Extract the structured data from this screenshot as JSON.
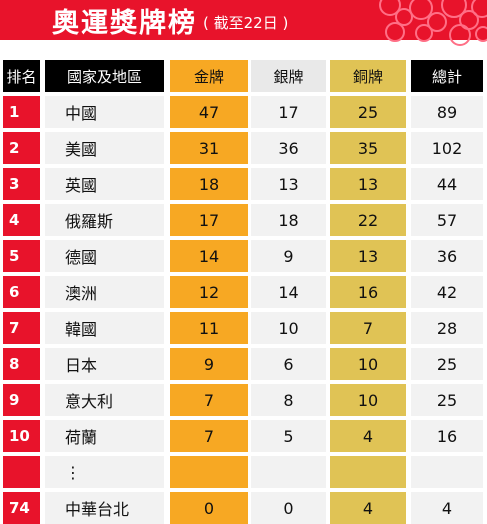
{
  "banner": {
    "title": "奧運獎牌榜",
    "subtitle": "( 截至22日 )"
  },
  "headers": {
    "rank": "排名",
    "country": "國家及地區",
    "gold": "金牌",
    "silver": "銀牌",
    "bronze": "銅牌",
    "total": "總計"
  },
  "rows": [
    {
      "rank": "1",
      "country": "中國",
      "gold": "47",
      "silver": "17",
      "bronze": "25",
      "total": "89"
    },
    {
      "rank": "2",
      "country": "美國",
      "gold": "31",
      "silver": "36",
      "bronze": "35",
      "total": "102"
    },
    {
      "rank": "3",
      "country": "英國",
      "gold": "18",
      "silver": "13",
      "bronze": "13",
      "total": "44"
    },
    {
      "rank": "4",
      "country": "俄羅斯",
      "gold": "17",
      "silver": "18",
      "bronze": "22",
      "total": "57"
    },
    {
      "rank": "5",
      "country": "德國",
      "gold": "14",
      "silver": "9",
      "bronze": "13",
      "total": "36"
    },
    {
      "rank": "6",
      "country": "澳洲",
      "gold": "12",
      "silver": "14",
      "bronze": "16",
      "total": "42"
    },
    {
      "rank": "7",
      "country": "韓國",
      "gold": "11",
      "silver": "10",
      "bronze": "7",
      "total": "28"
    },
    {
      "rank": "8",
      "country": "日本",
      "gold": "9",
      "silver": "6",
      "bronze": "10",
      "total": "25"
    },
    {
      "rank": "9",
      "country": "意大利",
      "gold": "7",
      "silver": "8",
      "bronze": "10",
      "total": "25"
    },
    {
      "rank": "10",
      "country": "荷蘭",
      "gold": "7",
      "silver": "5",
      "bronze": "4",
      "total": "16"
    },
    {
      "rank": "",
      "country": "⋮",
      "gold": "",
      "silver": "",
      "bronze": "",
      "total": ""
    },
    {
      "rank": "74",
      "country": "中華台北",
      "gold": "0",
      "silver": "0",
      "bronze": "4",
      "total": "4"
    }
  ],
  "colors": {
    "banner": "#e8132b",
    "gold": "#f7a823",
    "silver": "#e9e9e9",
    "bronze": "#e0c355",
    "rank": "#e8132b"
  }
}
